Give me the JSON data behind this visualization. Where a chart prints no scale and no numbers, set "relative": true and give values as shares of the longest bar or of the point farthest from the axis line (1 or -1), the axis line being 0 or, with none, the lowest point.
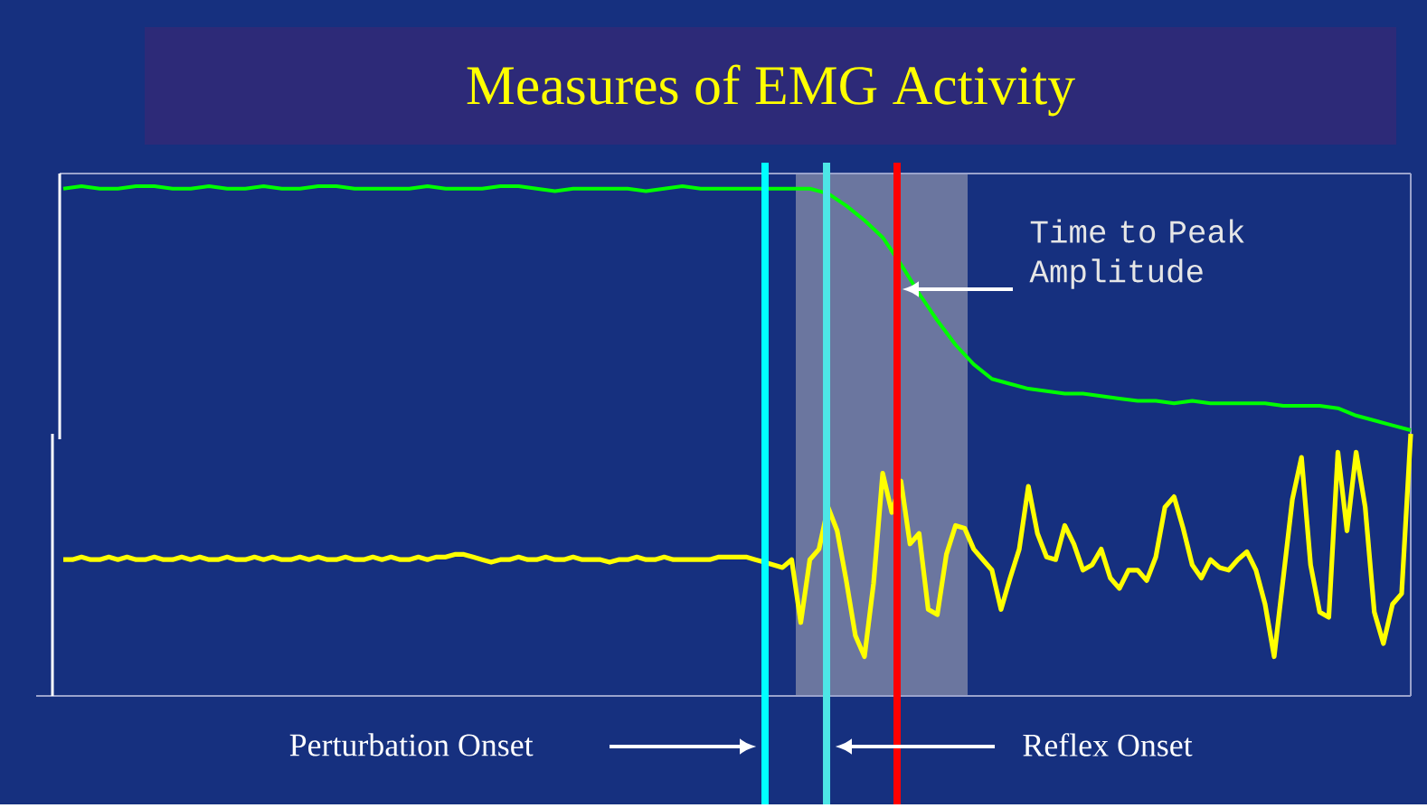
{
  "chart_data": [
    {
      "type": "line",
      "title": "Measures of EMG Activity",
      "relative": true,
      "categories": [
        null,
        null,
        null,
        null,
        null,
        null,
        null,
        null,
        null,
        null,
        null,
        null,
        null,
        null,
        null,
        null,
        null,
        null,
        null,
        null,
        null,
        null,
        null,
        null,
        null,
        null,
        null,
        null,
        null,
        null,
        null,
        null,
        null,
        null,
        null,
        null,
        null,
        null,
        null,
        null,
        null,
        null,
        null,
        null,
        null,
        null,
        null,
        null,
        null,
        null,
        null,
        null,
        null,
        null,
        null,
        null,
        null,
        null,
        null,
        null,
        null,
        null,
        null,
        null,
        null,
        null,
        null,
        null,
        null,
        null,
        null,
        null,
        null,
        null,
        null
      ],
      "series": [
        {
          "color": "#00ff00",
          "values": [
            0.99,
            1.0,
            0.99,
            0.99,
            1.0,
            1.0,
            0.99,
            0.99,
            1.0,
            0.99,
            0.99,
            1.0,
            0.99,
            0.99,
            1.0,
            1.0,
            0.99,
            0.99,
            0.99,
            0.99,
            1.0,
            0.99,
            0.99,
            0.99,
            1.0,
            1.0,
            0.99,
            0.98,
            0.99,
            0.99,
            0.99,
            0.99,
            0.98,
            0.99,
            1.0,
            0.99,
            0.99,
            0.99,
            0.99,
            0.99,
            0.99,
            0.99,
            0.97,
            0.92,
            0.86,
            0.79,
            0.68,
            0.56,
            0.45,
            0.35,
            0.27,
            0.21,
            0.19,
            0.17,
            0.16,
            0.15,
            0.15,
            0.14,
            0.13,
            0.12,
            0.12,
            0.11,
            0.12,
            0.11,
            0.11,
            0.11,
            0.11,
            0.1,
            0.1,
            0.1,
            0.09,
            0.06,
            0.04,
            0.02,
            0
          ]
        }
      ],
      "annotations": [
        "Time to Peak Amplitude"
      ]
    },
    {
      "type": "line",
      "relative": true,
      "categories": [
        null,
        null,
        null,
        null,
        null,
        null,
        null,
        null,
        null,
        null,
        null,
        null,
        null,
        null,
        null,
        null,
        null,
        null,
        null,
        null,
        null,
        null,
        null,
        null,
        null,
        null,
        null,
        null,
        null,
        null,
        null,
        null,
        null,
        null,
        null,
        null,
        null,
        null,
        null,
        null,
        null,
        null,
        null,
        null,
        null,
        null,
        null,
        null,
        null,
        null,
        null,
        null,
        null,
        null,
        null,
        null,
        null,
        null,
        null,
        null,
        null,
        null,
        null,
        null,
        null,
        null,
        null,
        null,
        null,
        null,
        null,
        null,
        null,
        null,
        null,
        null,
        null,
        null,
        null,
        null,
        null,
        null,
        null,
        null,
        null,
        null,
        null,
        null,
        null,
        null,
        null,
        null,
        null,
        null,
        null,
        null,
        null,
        null,
        null,
        null,
        null,
        null,
        null,
        null,
        null,
        null,
        null,
        null,
        null,
        null,
        null,
        null,
        null,
        null,
        null,
        null,
        null,
        null,
        null,
        null,
        null,
        null,
        null,
        null,
        null,
        null,
        null,
        null,
        null,
        null,
        null,
        null,
        null,
        null,
        null,
        null,
        null,
        null,
        null,
        null,
        null,
        null,
        null,
        null,
        null,
        null,
        null,
        null,
        null
      ],
      "series": [
        {
          "color": "#ffff00",
          "values": [
            0.52,
            0.52,
            0.53,
            0.52,
            0.52,
            0.53,
            0.52,
            0.53,
            0.52,
            0.52,
            0.53,
            0.52,
            0.52,
            0.53,
            0.52,
            0.53,
            0.52,
            0.52,
            0.53,
            0.52,
            0.52,
            0.53,
            0.52,
            0.53,
            0.52,
            0.52,
            0.53,
            0.52,
            0.53,
            0.52,
            0.52,
            0.53,
            0.52,
            0.52,
            0.53,
            0.52,
            0.53,
            0.52,
            0.52,
            0.53,
            0.52,
            0.53,
            0.53,
            0.54,
            0.54,
            0.53,
            0.52,
            0.51,
            0.52,
            0.52,
            0.53,
            0.52,
            0.52,
            0.53,
            0.52,
            0.52,
            0.53,
            0.52,
            0.52,
            0.52,
            0.51,
            0.52,
            0.52,
            0.53,
            0.52,
            0.52,
            0.53,
            0.52,
            0.52,
            0.52,
            0.52,
            0.52,
            0.53,
            0.53,
            0.53,
            0.53,
            0.52,
            0.51,
            0.5,
            0.49,
            0.52,
            0.28,
            0.52,
            0.56,
            0.72,
            0.63,
            0.44,
            0.23,
            0.15,
            0.43,
            0.85,
            0.7,
            0.82,
            0.58,
            0.62,
            0.33,
            0.31,
            0.54,
            0.65,
            0.64,
            0.56,
            0.52,
            0.48,
            0.33,
            0.45,
            0.56,
            0.8,
            0.62,
            0.53,
            0.52,
            0.65,
            0.58,
            0.48,
            0.5,
            0.56,
            0.45,
            0.41,
            0.48,
            0.48,
            0.44,
            0.53,
            0.72,
            0.76,
            0.64,
            0.5,
            0.45,
            0.52,
            0.49,
            0.48,
            0.52,
            0.55,
            0.48,
            0.35,
            0.15,
            0.45,
            0.75,
            0.91,
            0.5,
            0.32,
            0.3,
            0.93,
            0.63,
            0.93,
            0.72,
            0.32,
            0.2,
            0.35,
            0.39,
            1
          ]
        }
      ],
      "annotations": [
        "Perturbation Onset",
        "Reflex Onset"
      ]
    }
  ]
}
